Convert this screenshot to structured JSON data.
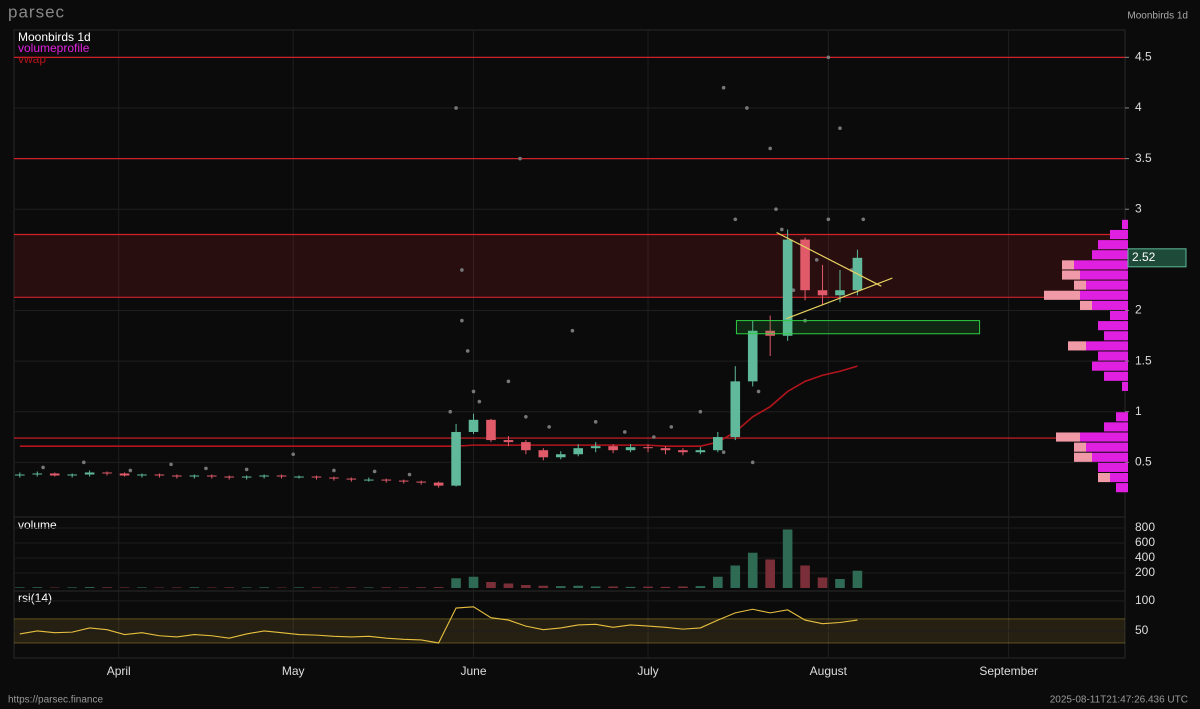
{
  "header": {
    "brand": "parsec",
    "title": "Moonbirds 1d"
  },
  "footer": {
    "url": "https://parsec.finance",
    "timestamp": "2025-08-11T21:47:26.436 UTC"
  },
  "chart_data": [
    {
      "type": "candlestick",
      "title": "Moonbirds 1d",
      "x": [
        1,
        4,
        7,
        10,
        13,
        16,
        19,
        22,
        25,
        28,
        31,
        34,
        37,
        40,
        43,
        46,
        49,
        52,
        55,
        58,
        61,
        64,
        67,
        70,
        73,
        76,
        79,
        82,
        85,
        88,
        91,
        94,
        97,
        100,
        103,
        106,
        109,
        112,
        115,
        118,
        121,
        124,
        127,
        130,
        133,
        136,
        139,
        142,
        145
      ],
      "open": [
        0.37,
        0.38,
        0.39,
        0.37,
        0.38,
        0.4,
        0.39,
        0.37,
        0.38,
        0.37,
        0.36,
        0.37,
        0.36,
        0.35,
        0.36,
        0.37,
        0.36,
        0.36,
        0.35,
        0.34,
        0.33,
        0.33,
        0.32,
        0.31,
        0.3,
        0.27,
        0.8,
        0.92,
        0.72,
        0.7,
        0.62,
        0.55,
        0.58,
        0.64,
        0.66,
        0.62,
        0.65,
        0.64,
        0.62,
        0.6,
        0.62,
        0.75,
        1.3,
        1.8,
        1.75,
        2.7,
        2.2,
        2.15,
        2.2
      ],
      "high": [
        0.4,
        0.41,
        0.4,
        0.39,
        0.42,
        0.41,
        0.4,
        0.39,
        0.39,
        0.38,
        0.38,
        0.38,
        0.37,
        0.37,
        0.38,
        0.38,
        0.37,
        0.37,
        0.36,
        0.35,
        0.35,
        0.34,
        0.33,
        0.32,
        0.31,
        0.88,
        0.98,
        0.93,
        0.76,
        0.72,
        0.64,
        0.61,
        0.68,
        0.7,
        0.68,
        0.68,
        0.68,
        0.66,
        0.64,
        0.65,
        0.8,
        1.45,
        1.9,
        1.95,
        2.8,
        2.72,
        2.45,
        2.4,
        2.6
      ],
      "low": [
        0.35,
        0.36,
        0.36,
        0.35,
        0.36,
        0.37,
        0.36,
        0.35,
        0.35,
        0.34,
        0.34,
        0.34,
        0.33,
        0.33,
        0.34,
        0.34,
        0.34,
        0.33,
        0.32,
        0.31,
        0.31,
        0.3,
        0.29,
        0.28,
        0.25,
        0.26,
        0.78,
        0.7,
        0.66,
        0.58,
        0.52,
        0.53,
        0.56,
        0.6,
        0.59,
        0.6,
        0.6,
        0.58,
        0.57,
        0.58,
        0.6,
        0.72,
        1.25,
        1.55,
        1.7,
        2.1,
        2.05,
        2.08,
        2.15
      ],
      "close": [
        0.38,
        0.39,
        0.37,
        0.38,
        0.4,
        0.39,
        0.37,
        0.38,
        0.37,
        0.36,
        0.37,
        0.36,
        0.35,
        0.36,
        0.37,
        0.36,
        0.36,
        0.35,
        0.34,
        0.33,
        0.33,
        0.32,
        0.31,
        0.3,
        0.27,
        0.8,
        0.92,
        0.72,
        0.7,
        0.62,
        0.55,
        0.58,
        0.64,
        0.66,
        0.62,
        0.65,
        0.64,
        0.62,
        0.6,
        0.62,
        0.75,
        1.3,
        1.8,
        1.75,
        2.7,
        2.2,
        2.15,
        2.2,
        2.52
      ],
      "up_color": "#5fb99a",
      "down_color": "#e05a6a",
      "xlim": [
        0,
        191
      ],
      "xticks": [
        {
          "value": 18,
          "label": "April"
        },
        {
          "value": 48,
          "label": "May"
        },
        {
          "value": 79,
          "label": "June"
        },
        {
          "value": 109,
          "label": "July"
        },
        {
          "value": 140,
          "label": "August"
        },
        {
          "value": 171,
          "label": "September"
        }
      ],
      "ylim": [
        -0.02,
        4.77
      ],
      "yticks": [
        0.5,
        1,
        1.5,
        2,
        3,
        3.5,
        4,
        4.5
      ],
      "grid": true,
      "vwap": {
        "name": "vwap",
        "color": "#b3141c",
        "values": [
          0.66,
          0.66,
          0.66,
          0.66,
          0.66,
          0.66,
          0.66,
          0.66,
          0.66,
          0.66,
          0.66,
          0.66,
          0.66,
          0.66,
          0.66,
          0.66,
          0.66,
          0.66,
          0.66,
          0.66,
          0.66,
          0.66,
          0.66,
          0.66,
          0.66,
          0.66,
          0.67,
          0.67,
          0.67,
          0.67,
          0.67,
          0.67,
          0.67,
          0.67,
          0.67,
          0.67,
          0.67,
          0.66,
          0.66,
          0.66,
          0.7,
          0.8,
          0.95,
          1.05,
          1.2,
          1.3,
          1.36,
          1.4,
          1.45
        ]
      },
      "levels": {
        "color": "#d0202a",
        "values": [
          4.5,
          3.5,
          2.75,
          2.13,
          0.74
        ]
      },
      "volume_profile": {
        "name": "volumeprofile",
        "color": "#e020e0",
        "color2": "#f09aa8",
        "levels": [
          0.25,
          0.35,
          0.45,
          0.55,
          0.65,
          0.75,
          0.85,
          0.95,
          1.05,
          1.15,
          1.25,
          1.35,
          1.45,
          1.55,
          1.65,
          1.75,
          1.85,
          1.95,
          2.05,
          2.15,
          2.25,
          2.35,
          2.45,
          2.55,
          2.65,
          2.75,
          2.85
        ],
        "values": [
          10,
          15,
          25,
          30,
          35,
          40,
          20,
          10,
          0,
          0,
          5,
          20,
          30,
          25,
          35,
          20,
          25,
          15,
          30,
          40,
          35,
          40,
          45,
          30,
          25,
          15,
          5
        ],
        "values2": [
          0,
          10,
          0,
          15,
          10,
          20,
          0,
          0,
          0,
          0,
          0,
          0,
          0,
          0,
          15,
          0,
          0,
          0,
          10,
          30,
          10,
          15,
          10,
          0,
          0,
          0,
          0
        ]
      },
      "trendlines": {
        "color": "#e8d060",
        "lines": [
          [
            131.1,
            2.77,
            149.1,
            2.24
          ],
          [
            132.8,
            1.92,
            151.0,
            2.32
          ]
        ]
      },
      "box": {
        "color": "#2ecc40",
        "x": [
          124.2,
          166
        ],
        "y": [
          1.77,
          1.9
        ]
      },
      "trades": {
        "color": "#777777",
        "x": [
          5,
          12,
          20,
          27,
          33,
          40,
          48,
          55,
          62,
          68,
          75,
          76,
          77,
          77,
          78,
          79,
          80,
          82,
          85,
          88,
          92,
          96,
          100,
          105,
          110,
          113,
          118,
          122,
          124,
          126,
          128,
          130,
          131,
          132,
          134,
          136,
          138,
          140,
          142,
          144,
          146,
          140,
          87,
          122,
          127
        ],
        "y": [
          0.45,
          0.5,
          0.42,
          0.48,
          0.44,
          0.43,
          0.58,
          0.42,
          0.41,
          0.38,
          1.0,
          4.0,
          2.4,
          1.9,
          1.6,
          1.2,
          1.1,
          0.9,
          1.3,
          0.95,
          0.85,
          1.8,
          0.9,
          0.8,
          0.75,
          0.85,
          1.0,
          4.2,
          2.9,
          4.0,
          1.2,
          3.6,
          3.0,
          2.8,
          2.2,
          1.9,
          2.5,
          2.9,
          3.8,
          2.4,
          2.9,
          4.5,
          3.5,
          0.6,
          0.5
        ]
      }
    },
    {
      "type": "bar",
      "title": "volume",
      "values": [
        8,
        10,
        6,
        8,
        12,
        9,
        7,
        8,
        6,
        7,
        9,
        6,
        8,
        7,
        9,
        6,
        8,
        7,
        6,
        8,
        7,
        9,
        8,
        10,
        12,
        130,
        150,
        80,
        60,
        40,
        30,
        25,
        30,
        20,
        20,
        15,
        18,
        15,
        20,
        25,
        150,
        300,
        470,
        380,
        780,
        300,
        140,
        120,
        230
      ],
      "ylim": [
        0,
        933
      ],
      "yticks": [
        200,
        400,
        600,
        800
      ]
    },
    {
      "type": "line",
      "title": "rsi(14)",
      "color": "#e8c040",
      "values": [
        45,
        50,
        47,
        48,
        55,
        52,
        44,
        47,
        42,
        40,
        44,
        42,
        38,
        45,
        50,
        47,
        44,
        43,
        41,
        40,
        41,
        38,
        36,
        35,
        30,
        88,
        90,
        72,
        68,
        58,
        52,
        55,
        60,
        61,
        56,
        60,
        58,
        56,
        53,
        55,
        68,
        80,
        86,
        80,
        85,
        68,
        62,
        64,
        68
      ],
      "band": [
        30,
        70
      ],
      "ylim": [
        10,
        113
      ],
      "yticks": [
        50,
        100
      ]
    }
  ]
}
